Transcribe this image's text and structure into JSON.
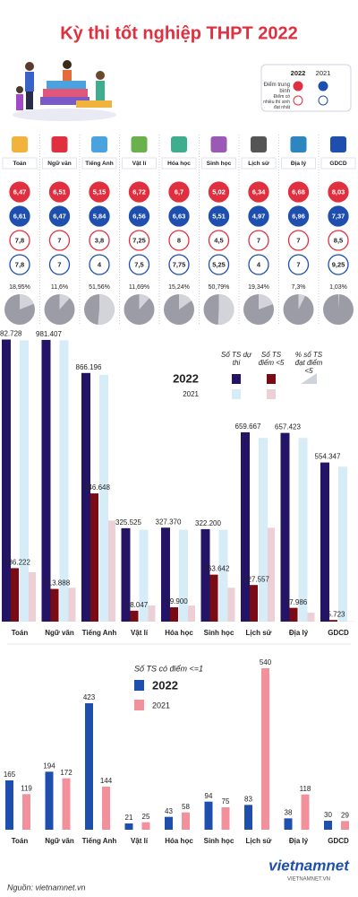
{
  "title": "Kỳ thi tốt nghiệp THPT 2022",
  "source": "Nguồn: vietnamnet.vn",
  "logo": "vietnamnet",
  "logo_sub": "VIETNAMNET.VN",
  "chart_data": [
    {
      "type": "score-grid",
      "categories": [
        "Toán",
        "Ngữ văn",
        "Tiếng Anh",
        "Vật lí",
        "Hóa học",
        "Sinh học",
        "Lịch sử",
        "Địa lý",
        "GDCD"
      ],
      "legend": {
        "years": [
          "2022",
          "2021"
        ],
        "rows": [
          "Điểm trung bình",
          "Điểm có nhiều thí sinh đạt nhất"
        ]
      },
      "series": [
        {
          "color": "#e0303f",
          "filled": true,
          "values": [
            6.47,
            6.51,
            5.15,
            6.72,
            6.7,
            5.02,
            6.34,
            6.68,
            8.03
          ],
          "value_labels": [
            "6,47",
            "6,51",
            "5,15",
            "6,72",
            "6,7",
            "5,02",
            "6,34",
            "6,68",
            "8,03"
          ]
        },
        {
          "color": "#1f4fae",
          "filled": true,
          "values": [
            6.61,
            6.47,
            5.84,
            6.56,
            6.63,
            5.51,
            4.97,
            6.96,
            7.37
          ],
          "value_labels": [
            "6,61",
            "6,47",
            "5,84",
            "6,56",
            "6,63",
            "5,51",
            "4,97",
            "6,96",
            "7,37"
          ]
        },
        {
          "color": "#e0303f",
          "filled": false,
          "values": [
            7.8,
            7,
            3.8,
            7.25,
            8,
            4.5,
            7,
            7,
            8.5
          ],
          "value_labels": [
            "7,8",
            "7",
            "3,8",
            "7,25",
            "8",
            "4,5",
            "7",
            "7",
            "8,5"
          ]
        },
        {
          "color": "#1f4fae",
          "filled": false,
          "values": [
            7.8,
            7,
            4,
            7.5,
            7.75,
            5.25,
            4,
            7,
            9.25
          ],
          "value_labels": [
            "7,8",
            "7",
            "4",
            "7,5",
            "7,75",
            "5,25",
            "4",
            "7",
            "9,25"
          ]
        }
      ]
    },
    {
      "type": "pie",
      "color": "#9c9ca6",
      "slice_color": "#d3d4da",
      "values": [
        18.95,
        11.6,
        51.56,
        11.69,
        15.24,
        50.79,
        19.34,
        7.3,
        1.03
      ],
      "value_labels": [
        "18,95%",
        "11,6%",
        "51,56%",
        "11,69%",
        "15,24%",
        "50,79%",
        "19,34%",
        "7,3%",
        "1,03%"
      ]
    },
    {
      "type": "bar",
      "categories": [
        "Toán",
        "Ngữ văn",
        "Tiếng Anh",
        "Vật lí",
        "Hóa học",
        "Sinh học",
        "Lịch sử",
        "Địa lý",
        "GDCD"
      ],
      "legend": {
        "columns": [
          "Số TS dự thi",
          "Số TS điểm <5",
          "% số TS đạt điểm <5"
        ],
        "rows": [
          "2022",
          "2021"
        ]
      },
      "ylim": [
        0,
        1000000
      ],
      "series": [
        {
          "color": "#241466",
          "values": [
            982728,
            981407,
            866196,
            325525,
            327370,
            322200,
            659667,
            657423,
            554347
          ],
          "value_labels": [
            "982.728",
            "981.407",
            "866.196",
            "325.525",
            "327.370",
            "322.200",
            "659.667",
            "657.423",
            "554.347"
          ]
        },
        {
          "color": "#d6ecf7",
          "values": [
            980000,
            980000,
            860000,
            320000,
            320000,
            320000,
            640000,
            640000,
            540000
          ]
        },
        {
          "color": "#7a0a14",
          "values": [
            186222,
            113888,
            446648,
            38047,
            49900,
            163642,
            127557,
            47986,
            5723
          ],
          "value_labels": [
            "186.222",
            "113.888",
            "446.648",
            "38.047",
            "49.900",
            "163.642",
            "127.557",
            "47.986",
            "5.723"
          ]
        },
        {
          "color": "#ecd0d6",
          "values": [
            172000,
            118000,
            352000,
            56000,
            56000,
            118000,
            327000,
            31000,
            1000
          ]
        }
      ]
    },
    {
      "type": "bar",
      "title": "Số TS có điểm <=1",
      "categories": [
        "Toán",
        "Ngữ văn",
        "Tiếng Anh",
        "Vật lí",
        "Hóa học",
        "Sinh học",
        "Lịch sử",
        "Địa lý",
        "GDCD"
      ],
      "ylim": [
        0,
        540
      ],
      "series": [
        {
          "name": "2022",
          "color": "#1f4fae",
          "values": [
            165,
            194,
            423,
            21,
            43,
            94,
            83,
            38,
            30
          ]
        },
        {
          "name": "2021",
          "color": "#f2909c",
          "values": [
            119,
            172,
            144,
            25,
            58,
            75,
            540,
            118,
            29
          ]
        }
      ]
    }
  ]
}
